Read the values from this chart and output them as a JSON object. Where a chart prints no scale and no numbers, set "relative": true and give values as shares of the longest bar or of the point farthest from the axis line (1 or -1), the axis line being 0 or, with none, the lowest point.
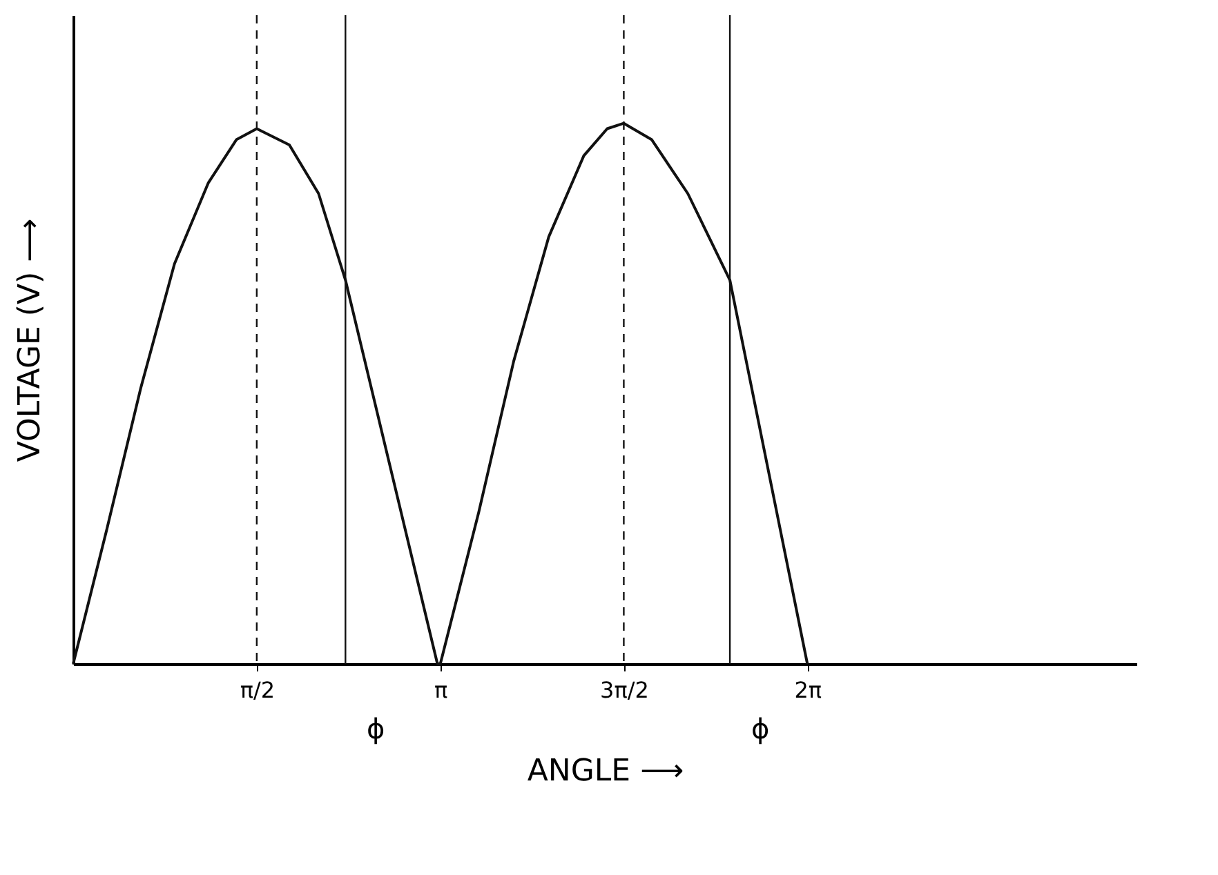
{
  "chart_data": {
    "type": "line",
    "relative": true,
    "xlabel": "ANGLE ⟶",
    "ylabel": "VOLTAGE (V) ⟶",
    "x": [
      0,
      0.289,
      0.578,
      0.867,
      1.157,
      1.398,
      1.571,
      1.85,
      2.1,
      2.33,
      3.117,
      3.142,
      3.47,
      3.77,
      4.07,
      4.37,
      4.57,
      4.712,
      4.95,
      5.26,
      5.62,
      6.283
    ],
    "series": [
      {
        "color": "#111111",
        "values": [
          0,
          0.25,
          0.51,
          0.74,
          0.89,
          0.97,
          0.99,
          0.96,
          0.87,
          0.71,
          0,
          0,
          0.28,
          0.56,
          0.79,
          0.94,
          0.99,
          1,
          0.97,
          0.87,
          0.71,
          0
        ]
      }
    ],
    "xlim": [
      0,
      9.1
    ],
    "xticks": [
      {
        "value": 1.571,
        "label": "π/2"
      },
      {
        "value": 3.142,
        "label": "π"
      },
      {
        "value": 4.712,
        "label": "3π/2"
      },
      {
        "value": 6.283,
        "label": "2π"
      }
    ],
    "ref_lines": [
      {
        "axis": "x",
        "value": 1.571,
        "line_style": "dashed",
        "color": "#111111"
      },
      {
        "axis": "x",
        "value": 4.712,
        "line_style": "dashed",
        "color": "#111111"
      },
      {
        "axis": "x",
        "value": 2.33,
        "line_style": "solid",
        "color": "#111111",
        "label": "ϕ"
      },
      {
        "axis": "x",
        "value": 5.62,
        "line_style": "solid",
        "color": "#111111",
        "label": "ϕ"
      }
    ],
    "grid": false,
    "marker": "none",
    "line_style": "solid"
  }
}
